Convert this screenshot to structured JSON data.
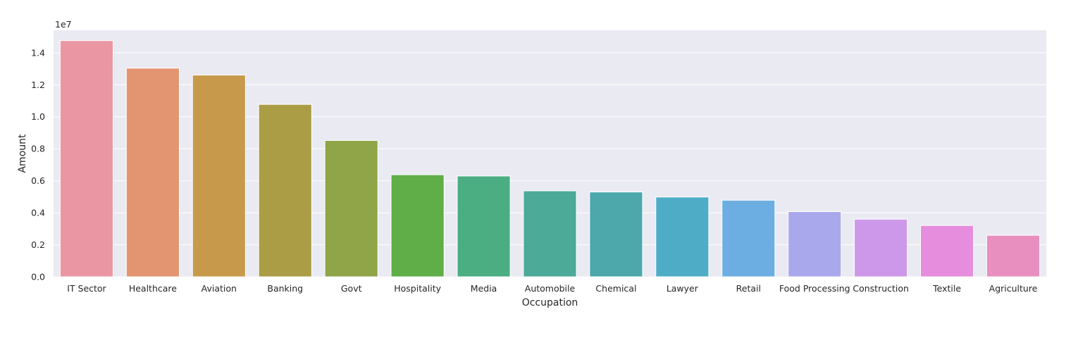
{
  "chart_data": {
    "type": "bar",
    "xlabel": "Occupation",
    "ylabel": "Amount",
    "offset_label": "1e7",
    "scale": 10000000,
    "categories": [
      "IT Sector",
      "Healthcare",
      "Aviation",
      "Banking",
      "Govt",
      "Hospitality",
      "Media",
      "Automobile",
      "Chemical",
      "Lawyer",
      "Retail",
      "Food Processing",
      "Construction",
      "Textile",
      "Agriculture"
    ],
    "values": [
      14755483,
      13034586,
      12602298,
      10770610,
      8517212,
      6376405,
      6295833,
      5368596,
      5297436,
      4981665,
      4783170,
      4070670,
      3597511,
      3204972,
      2593087
    ],
    "colors": [
      "#ea96a3",
      "#e39571",
      "#c79a4b",
      "#ab9d45",
      "#8fa547",
      "#5fae48",
      "#4aae82",
      "#4baa98",
      "#4ca8ab",
      "#4facc6",
      "#6caee2",
      "#aaa8ec",
      "#cd98e9",
      "#e68ddd",
      "#e98fc0"
    ],
    "ylim": [
      0,
      15400000
    ],
    "yticks": [
      0,
      2000000,
      4000000,
      6000000,
      8000000,
      10000000,
      12000000,
      14000000
    ],
    "ytick_labels": [
      "0.0",
      "0.2",
      "0.4",
      "0.6",
      "0.8",
      "1.0",
      "1.2",
      "1.4"
    ],
    "grid": true,
    "background": "#eaeaf2",
    "grid_color": "#ffffff"
  }
}
